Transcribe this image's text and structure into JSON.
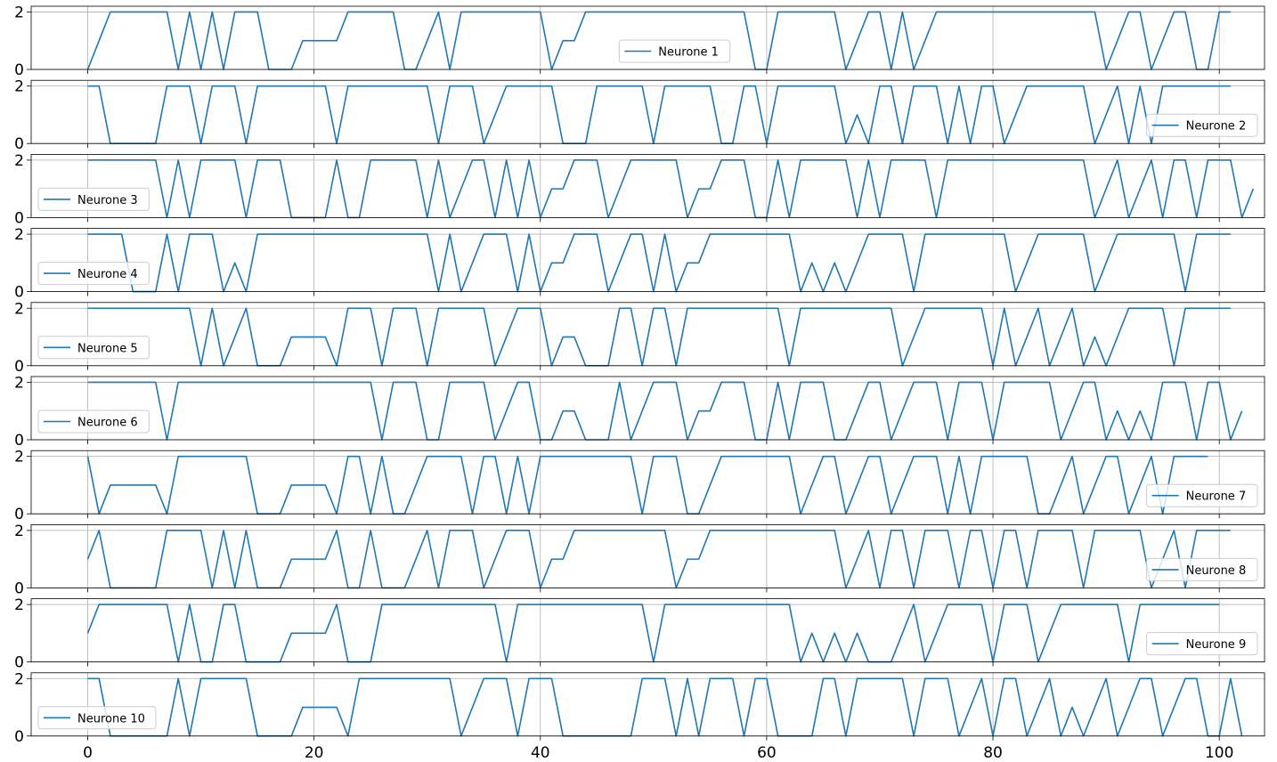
{
  "chart_data": {
    "type": "line",
    "subplots": 10,
    "shared_x": true,
    "x_range": [
      0,
      99
    ],
    "xlim": [
      -5,
      104
    ],
    "ylim": [
      0,
      2.2
    ],
    "xticks": [
      0,
      20,
      40,
      60,
      80,
      100
    ],
    "yticks": [
      0,
      2
    ],
    "grid": true,
    "color": "#1f77b4",
    "series": [
      {
        "name": "Neurone 1",
        "legend": "lower-center",
        "values": [
          0,
          1,
          2,
          2,
          2,
          2,
          2,
          2,
          0,
          2,
          0,
          2,
          0,
          2,
          2,
          2,
          0,
          0,
          0,
          1,
          1,
          1,
          1,
          2,
          2,
          2,
          2,
          2,
          0,
          0,
          1,
          2,
          0,
          2,
          2,
          2,
          2,
          2,
          2,
          2,
          2,
          0,
          1,
          1,
          2,
          2,
          2,
          2,
          2,
          2,
          2,
          2,
          2,
          2,
          2,
          2,
          2,
          2,
          2,
          0,
          0,
          2,
          2,
          2,
          2,
          2,
          2,
          0,
          1,
          2,
          2,
          0,
          2,
          0,
          1,
          2,
          2,
          2,
          2,
          2,
          2,
          2,
          2,
          2,
          2,
          2,
          2,
          2,
          2,
          2,
          0,
          1,
          2,
          2,
          0,
          1,
          2,
          2,
          0,
          0,
          2,
          2
        ]
      },
      {
        "name": "Neurone 2",
        "legend": "lower-right",
        "values": [
          2,
          2,
          0,
          0,
          0,
          0,
          0,
          2,
          2,
          2,
          0,
          2,
          2,
          2,
          0,
          2,
          2,
          2,
          2,
          2,
          2,
          2,
          0,
          2,
          2,
          2,
          2,
          2,
          2,
          2,
          2,
          0,
          2,
          2,
          2,
          0,
          1,
          2,
          2,
          2,
          2,
          2,
          0,
          0,
          0,
          2,
          2,
          2,
          2,
          2,
          0,
          2,
          2,
          2,
          2,
          2,
          0,
          0,
          2,
          2,
          0,
          2,
          2,
          2,
          2,
          2,
          2,
          0,
          1,
          0,
          2,
          2,
          0,
          2,
          2,
          2,
          0,
          2,
          0,
          2,
          2,
          0,
          1,
          2,
          2,
          2,
          2,
          2,
          2,
          0,
          1,
          2,
          0,
          2,
          0,
          2,
          2,
          2,
          2,
          2,
          2,
          2
        ]
      },
      {
        "name": "Neurone 3",
        "legend": "lower-left",
        "values": [
          2,
          2,
          2,
          2,
          2,
          2,
          2,
          0,
          2,
          0,
          2,
          2,
          2,
          2,
          0,
          2,
          2,
          2,
          0,
          0,
          0,
          0,
          2,
          0,
          0,
          2,
          2,
          2,
          2,
          2,
          0,
          2,
          0,
          1,
          2,
          2,
          0,
          2,
          0,
          2,
          0,
          1,
          1,
          2,
          2,
          2,
          0,
          1,
          2,
          2,
          2,
          2,
          2,
          0,
          1,
          1,
          2,
          2,
          2,
          0,
          0,
          2,
          0,
          2,
          2,
          2,
          2,
          2,
          0,
          2,
          0,
          2,
          2,
          2,
          2,
          0,
          2,
          2,
          2,
          2,
          2,
          2,
          2,
          2,
          2,
          2,
          2,
          2,
          2,
          0,
          1,
          2,
          0,
          1,
          2,
          0,
          2,
          2,
          0,
          2,
          2,
          2,
          0,
          1
        ]
      },
      {
        "name": "Neurone 4",
        "legend": "lower-left",
        "values": [
          2,
          2,
          2,
          2,
          0,
          0,
          0,
          2,
          0,
          2,
          2,
          2,
          0,
          1,
          0,
          2,
          2,
          2,
          2,
          2,
          2,
          2,
          2,
          2,
          2,
          2,
          2,
          2,
          2,
          2,
          2,
          0,
          2,
          0,
          1,
          2,
          2,
          2,
          0,
          2,
          0,
          1,
          1,
          2,
          2,
          2,
          0,
          1,
          2,
          2,
          0,
          2,
          0,
          1,
          1,
          2,
          2,
          2,
          2,
          2,
          2,
          2,
          2,
          0,
          1,
          0,
          1,
          0,
          1,
          2,
          2,
          2,
          2,
          0,
          2,
          2,
          2,
          2,
          2,
          2,
          2,
          2,
          0,
          1,
          2,
          2,
          2,
          2,
          2,
          0,
          1,
          2,
          2,
          2,
          2,
          2,
          2,
          0,
          2,
          2,
          2,
          2
        ]
      },
      {
        "name": "Neurone 5",
        "legend": "lower-left",
        "values": [
          2,
          2,
          2,
          2,
          2,
          2,
          2,
          2,
          2,
          2,
          0,
          2,
          0,
          1,
          2,
          0,
          0,
          0,
          1,
          1,
          1,
          1,
          0,
          2,
          2,
          2,
          0,
          2,
          2,
          2,
          0,
          2,
          2,
          2,
          2,
          2,
          0,
          1,
          2,
          2,
          2,
          0,
          1,
          1,
          0,
          0,
          0,
          2,
          2,
          0,
          2,
          2,
          0,
          2,
          2,
          2,
          2,
          2,
          2,
          2,
          2,
          2,
          0,
          2,
          2,
          2,
          2,
          2,
          2,
          2,
          2,
          2,
          0,
          1,
          2,
          2,
          2,
          2,
          2,
          2,
          0,
          2,
          0,
          1,
          2,
          0,
          1,
          2,
          0,
          1,
          0,
          1,
          2,
          2,
          2,
          2,
          0,
          2,
          2,
          2,
          2,
          2
        ]
      },
      {
        "name": "Neurone 6",
        "legend": "lower-left",
        "values": [
          2,
          2,
          2,
          2,
          2,
          2,
          2,
          0,
          2,
          2,
          2,
          2,
          2,
          2,
          2,
          2,
          2,
          2,
          2,
          2,
          2,
          2,
          2,
          2,
          2,
          2,
          0,
          2,
          2,
          2,
          0,
          0,
          2,
          2,
          2,
          2,
          0,
          1,
          2,
          2,
          0,
          0,
          1,
          1,
          0,
          0,
          0,
          2,
          0,
          1,
          2,
          2,
          2,
          0,
          1,
          1,
          2,
          2,
          2,
          0,
          0,
          2,
          0,
          2,
          2,
          2,
          0,
          0,
          1,
          2,
          2,
          0,
          1,
          2,
          2,
          2,
          0,
          2,
          2,
          2,
          0,
          2,
          2,
          2,
          2,
          2,
          0,
          1,
          2,
          2,
          0,
          1,
          0,
          1,
          0,
          2,
          2,
          2,
          0,
          2,
          2,
          0,
          1
        ]
      },
      {
        "name": "Neurone 7",
        "legend": "lower-right",
        "values": [
          2,
          0,
          1,
          1,
          1,
          1,
          1,
          0,
          2,
          2,
          2,
          2,
          2,
          2,
          2,
          0,
          0,
          0,
          1,
          1,
          1,
          1,
          0,
          2,
          2,
          0,
          2,
          0,
          0,
          1,
          2,
          2,
          2,
          2,
          0,
          2,
          2,
          0,
          2,
          0,
          2,
          2,
          2,
          2,
          2,
          2,
          2,
          2,
          2,
          0,
          2,
          2,
          2,
          0,
          0,
          1,
          2,
          2,
          2,
          2,
          2,
          2,
          2,
          0,
          1,
          2,
          2,
          0,
          1,
          2,
          2,
          0,
          1,
          2,
          2,
          2,
          0,
          2,
          0,
          2,
          2,
          2,
          2,
          2,
          0,
          0,
          1,
          2,
          0,
          1,
          2,
          2,
          0,
          1,
          2,
          0,
          2,
          2,
          2,
          2
        ]
      },
      {
        "name": "Neurone 8",
        "legend": "lower-right",
        "values": [
          1,
          2,
          0,
          0,
          0,
          0,
          0,
          2,
          2,
          2,
          2,
          0,
          2,
          0,
          2,
          0,
          0,
          0,
          1,
          1,
          1,
          1,
          2,
          0,
          0,
          2,
          0,
          0,
          0,
          1,
          2,
          0,
          2,
          2,
          2,
          0,
          1,
          2,
          2,
          2,
          0,
          1,
          1,
          2,
          2,
          2,
          2,
          2,
          2,
          2,
          2,
          2,
          0,
          1,
          1,
          2,
          2,
          2,
          2,
          2,
          2,
          2,
          2,
          2,
          2,
          2,
          2,
          0,
          1,
          2,
          0,
          2,
          2,
          0,
          2,
          2,
          2,
          0,
          2,
          2,
          0,
          2,
          2,
          0,
          2,
          2,
          2,
          2,
          0,
          2,
          2,
          2,
          2,
          2,
          0,
          1,
          2,
          0,
          2,
          2,
          2,
          2
        ]
      },
      {
        "name": "Neurone 9",
        "legend": "lower-right",
        "values": [
          1,
          2,
          2,
          2,
          2,
          2,
          2,
          2,
          0,
          2,
          0,
          0,
          2,
          2,
          0,
          0,
          0,
          0,
          1,
          1,
          1,
          1,
          2,
          0,
          0,
          0,
          2,
          2,
          2,
          2,
          2,
          2,
          2,
          2,
          2,
          2,
          2,
          0,
          2,
          2,
          2,
          2,
          2,
          2,
          2,
          2,
          2,
          2,
          2,
          2,
          0,
          2,
          2,
          2,
          2,
          2,
          2,
          2,
          2,
          2,
          2,
          2,
          2,
          0,
          1,
          0,
          1,
          0,
          1,
          0,
          0,
          0,
          1,
          2,
          0,
          1,
          2,
          2,
          2,
          2,
          0,
          2,
          2,
          2,
          0,
          1,
          2,
          2,
          2,
          2,
          2,
          2,
          0,
          2,
          2,
          2,
          2,
          2,
          2,
          2,
          2
        ]
      },
      {
        "name": "Neurone 10",
        "legend": "lower-left",
        "values": [
          2,
          2,
          0,
          0,
          0,
          0,
          0,
          0,
          2,
          0,
          2,
          2,
          2,
          2,
          2,
          0,
          0,
          0,
          0,
          1,
          1,
          1,
          1,
          0,
          2,
          2,
          2,
          2,
          2,
          2,
          2,
          2,
          2,
          0,
          1,
          2,
          2,
          2,
          0,
          2,
          2,
          2,
          0,
          0,
          0,
          0,
          0,
          0,
          0,
          2,
          2,
          2,
          0,
          2,
          0,
          2,
          2,
          2,
          0,
          2,
          2,
          0,
          0,
          0,
          0,
          2,
          2,
          0,
          2,
          2,
          2,
          2,
          2,
          0,
          2,
          2,
          2,
          0,
          1,
          2,
          0,
          2,
          2,
          0,
          1,
          2,
          0,
          1,
          0,
          1,
          2,
          0,
          1,
          2,
          2,
          0,
          1,
          2,
          2,
          0,
          0,
          2,
          0
        ]
      }
    ]
  }
}
